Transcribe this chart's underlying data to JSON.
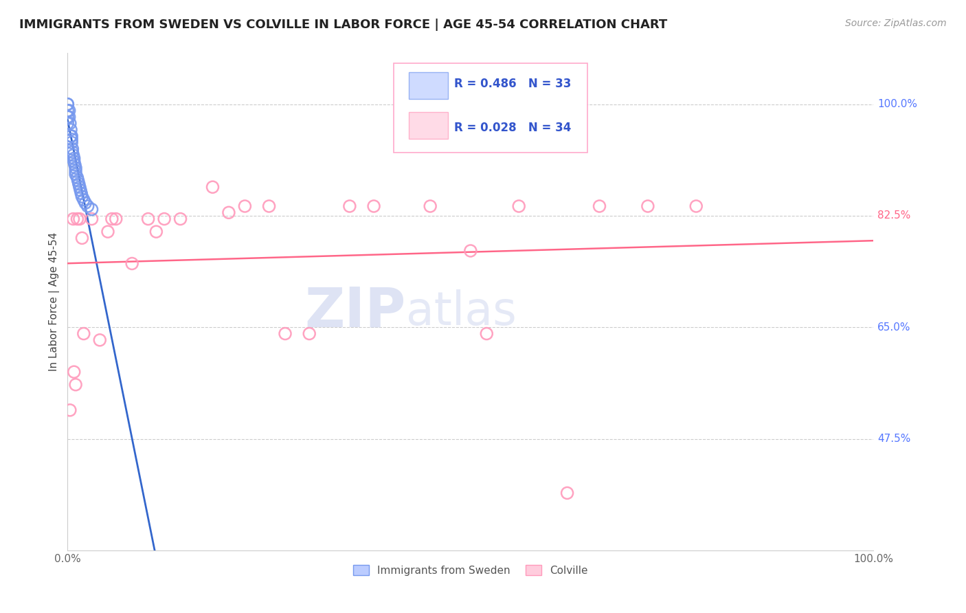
{
  "title": "IMMIGRANTS FROM SWEDEN VS COLVILLE IN LABOR FORCE | AGE 45-54 CORRELATION CHART",
  "source": "Source: ZipAtlas.com",
  "ylabel": "In Labor Force | Age 45-54",
  "xlim": [
    0.0,
    1.0
  ],
  "ylim": [
    0.3,
    1.08
  ],
  "ytick_positions": [
    0.475,
    0.65,
    0.825,
    1.0
  ],
  "ytick_labels": [
    "47.5%",
    "65.0%",
    "82.5%",
    "100.0%"
  ],
  "ytick_colors": [
    "#5577ff",
    "#5577ff",
    "#ff6688",
    "#5577ff"
  ],
  "sweden_color": "#7799ee",
  "colville_color": "#ff99bb",
  "sweden_line_color": "#3366cc",
  "colville_line_color": "#ff6688",
  "sweden_R": 0.486,
  "sweden_N": 33,
  "colville_R": 0.028,
  "colville_N": 34,
  "watermark_zip": "ZIP",
  "watermark_atlas": "atlas",
  "legend_sweden": "Immigrants from Sweden",
  "legend_colville": "Colville",
  "sweden_x": [
    0.0,
    0.0,
    0.0,
    0.0,
    0.0,
    0.002,
    0.002,
    0.003,
    0.004,
    0.004,
    0.005,
    0.005,
    0.005,
    0.006,
    0.006,
    0.007,
    0.008,
    0.008,
    0.009,
    0.01,
    0.01,
    0.01,
    0.012,
    0.013,
    0.014,
    0.015,
    0.016,
    0.017,
    0.018,
    0.02,
    0.022,
    0.025,
    0.03
  ],
  "sweden_y": [
    1.0,
    1.0,
    0.99,
    0.98,
    0.97,
    0.99,
    0.98,
    0.97,
    0.96,
    0.95,
    0.95,
    0.945,
    0.94,
    0.93,
    0.925,
    0.92,
    0.915,
    0.91,
    0.905,
    0.9,
    0.895,
    0.89,
    0.885,
    0.88,
    0.875,
    0.87,
    0.865,
    0.86,
    0.855,
    0.85,
    0.845,
    0.84,
    0.835
  ],
  "colville_x": [
    0.003,
    0.007,
    0.008,
    0.01,
    0.012,
    0.015,
    0.018,
    0.02,
    0.03,
    0.04,
    0.05,
    0.055,
    0.06,
    0.08,
    0.1,
    0.11,
    0.12,
    0.14,
    0.18,
    0.2,
    0.22,
    0.25,
    0.27,
    0.3,
    0.35,
    0.38,
    0.45,
    0.5,
    0.52,
    0.56,
    0.62,
    0.66,
    0.72,
    0.78
  ],
  "colville_y": [
    0.52,
    0.82,
    0.58,
    0.56,
    0.82,
    0.82,
    0.79,
    0.64,
    0.82,
    0.63,
    0.8,
    0.82,
    0.82,
    0.75,
    0.82,
    0.8,
    0.82,
    0.82,
    0.87,
    0.83,
    0.84,
    0.84,
    0.64,
    0.64,
    0.84,
    0.84,
    0.84,
    0.77,
    0.64,
    0.84,
    0.39,
    0.84,
    0.84,
    0.84
  ]
}
